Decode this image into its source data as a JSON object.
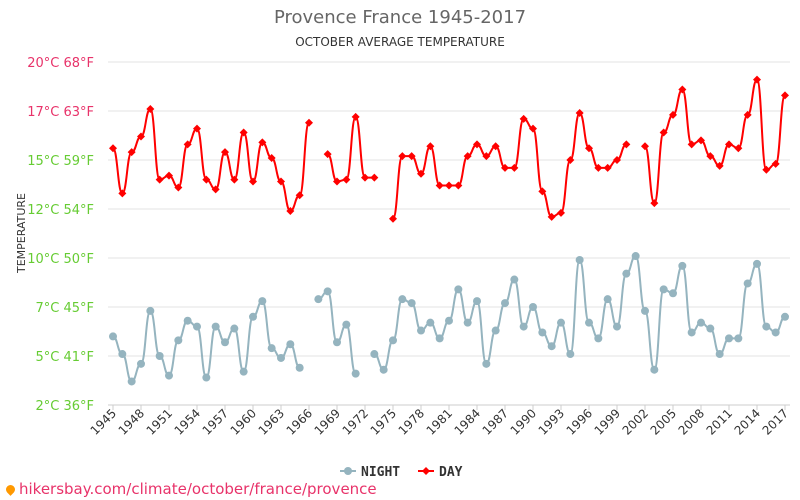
{
  "chart_data": {
    "type": "line",
    "title": "Provence France 1945-2017",
    "subtitle": "OCTOBER AVERAGE TEMPERATURE",
    "ylabel": "TEMPERATURE",
    "xlabel": "",
    "ylim": [
      2.5,
      20
    ],
    "grid": true,
    "legend_placement": "bottom",
    "y_ticks": [
      {
        "value": 20,
        "label": "20°C 68°F"
      },
      {
        "value": 17.5,
        "label": "17°C 63°F"
      },
      {
        "value": 15,
        "label": "15°C 59°F"
      },
      {
        "value": 12.5,
        "label": "12°C 54°F"
      },
      {
        "value": 10,
        "label": "10°C 50°F"
      },
      {
        "value": 7.5,
        "label": "7°C 45°F"
      },
      {
        "value": 5,
        "label": "5°C 41°F"
      },
      {
        "value": 2.5,
        "label": "2°C 36°F"
      }
    ],
    "x_ticks": [
      "1945",
      "1948",
      "1951",
      "1954",
      "1957",
      "1960",
      "1963",
      "1966",
      "1969",
      "1972",
      "1975",
      "1978",
      "1981",
      "1984",
      "1987",
      "1990",
      "1993",
      "1996",
      "1999",
      "2002",
      "2005",
      "2008",
      "2011",
      "2014",
      "2017"
    ],
    "x_start": 1945,
    "series": [
      {
        "name": "NIGHT",
        "color": "#95b4bf",
        "values": [
          6.0,
          5.1,
          3.7,
          4.6,
          7.3,
          5.0,
          4.0,
          5.8,
          6.8,
          6.5,
          3.9,
          6.5,
          5.7,
          6.4,
          4.2,
          7.0,
          7.8,
          5.4,
          4.9,
          5.6,
          4.4,
          null,
          7.9,
          8.3,
          5.7,
          6.6,
          4.1,
          null,
          5.1,
          4.3,
          5.8,
          7.9,
          7.7,
          6.3,
          6.7,
          5.9,
          6.8,
          8.4,
          6.7,
          7.8,
          4.6,
          6.3,
          7.7,
          8.9,
          6.5,
          7.5,
          6.2,
          5.5,
          6.7,
          5.1,
          9.9,
          6.7,
          5.9,
          7.9,
          6.5,
          9.2,
          10.1,
          7.3,
          4.3,
          8.4,
          8.2,
          9.6,
          6.2,
          6.7,
          6.4,
          5.1,
          5.9,
          5.9,
          8.7,
          9.7,
          6.5,
          6.2,
          7.0
        ]
      },
      {
        "name": "DAY",
        "color": "#ff0000",
        "values": [
          15.6,
          13.3,
          15.4,
          16.2,
          17.6,
          14.0,
          14.2,
          13.6,
          15.8,
          16.6,
          14.0,
          13.5,
          15.4,
          14.0,
          16.4,
          13.9,
          15.9,
          15.1,
          13.9,
          12.4,
          13.2,
          16.9,
          null,
          15.3,
          13.9,
          14.0,
          17.2,
          14.1,
          14.1,
          null,
          12.0,
          15.2,
          15.2,
          14.3,
          15.7,
          13.7,
          13.7,
          13.7,
          15.2,
          15.8,
          15.2,
          15.7,
          14.6,
          14.6,
          17.1,
          16.6,
          13.4,
          12.1,
          12.3,
          15.0,
          17.4,
          15.6,
          14.6,
          14.6,
          15.0,
          15.8,
          null,
          15.7,
          12.8,
          16.4,
          17.3,
          18.6,
          15.8,
          16.0,
          15.2,
          14.7,
          15.8,
          15.6,
          17.3,
          19.1,
          14.5,
          14.8,
          18.3
        ]
      }
    ]
  },
  "footer": {
    "source": "hikersbay.com/climate/october/france/provence"
  },
  "colors": {
    "warm_label": "#e8336a",
    "cool_label": "#66cc33"
  }
}
